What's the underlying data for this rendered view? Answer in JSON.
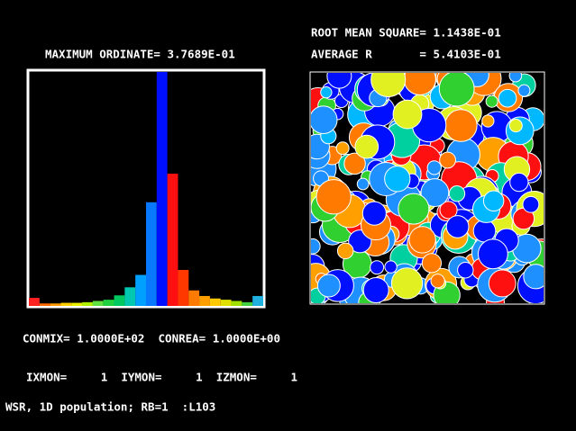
{
  "chart_data": {
    "type": "bar",
    "title": "MAXIMUM ORDINATE= 3.7689E-01",
    "categories": [
      null,
      null,
      null,
      null,
      null,
      null,
      null,
      null,
      null,
      null,
      null,
      null,
      null,
      null,
      null,
      null,
      null,
      null,
      null,
      null,
      null,
      null
    ],
    "values": [
      0.013,
      0.004,
      0.004,
      0.005,
      0.005,
      0.006,
      0.008,
      0.01,
      0.017,
      0.03,
      0.05,
      0.167,
      0.37689,
      0.213,
      0.058,
      0.025,
      0.016,
      0.012,
      0.01,
      0.008,
      0.006,
      0.016
    ],
    "colors": [
      "#ff2020",
      "#ff6a00",
      "#ff9a00",
      "#ffd000",
      "#e8f000",
      "#b0f000",
      "#60e040",
      "#20d040",
      "#00c860",
      "#00c8b0",
      "#00a0ff",
      "#0878ff",
      "#0010ff",
      "#ff1010",
      "#ff3800",
      "#ff7a00",
      "#ffa000",
      "#ffc800",
      "#e0e000",
      "#a0e000",
      "#40d040",
      "#20b0e0"
    ],
    "ylim": [
      0,
      0.37689
    ]
  },
  "panel": {
    "rms": "ROOT MEAN SQUARE= 1.1438E-01",
    "avg": "AVERAGE R       = 5.4103E-01"
  },
  "params": {
    "con": "CONMIX= 1.0000E+02  CONREA= 1.0000E+00",
    "mon": "IXMON=     1  IYMON=     1  IZMON=     1"
  },
  "status": "WSR, 1D population; RB=1  :L103"
}
